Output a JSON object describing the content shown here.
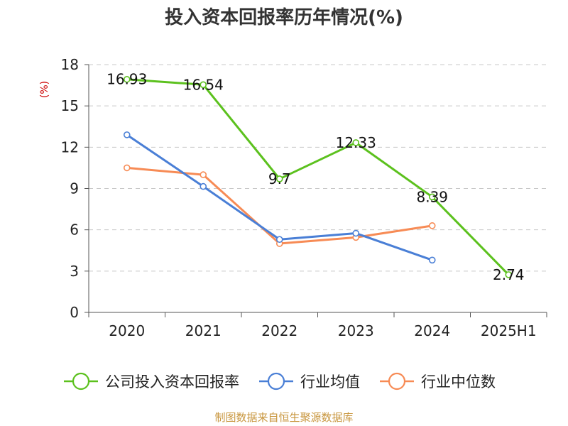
{
  "chart_data": {
    "type": "line",
    "title": "投入资本回报率历年情况(%)",
    "ylabel": "(%)",
    "categories": [
      "2020",
      "2021",
      "2022",
      "2023",
      "2024",
      "2025H1"
    ],
    "ylim": [
      0,
      18
    ],
    "yticks": [
      0,
      3,
      6,
      9,
      12,
      15,
      18
    ],
    "grid": true,
    "legend_position": "bottom",
    "series": [
      {
        "name": "公司投入资本回报率",
        "color": "#5cc11e",
        "values": [
          16.93,
          16.54,
          9.7,
          12.33,
          8.39,
          2.74
        ],
        "labels": [
          "16.93",
          "16.54",
          "9.7",
          "12.33",
          "8.39",
          "2.74"
        ]
      },
      {
        "name": "行业均值",
        "color": "#4a7fd6",
        "values": [
          12.9,
          9.15,
          5.3,
          5.75,
          3.8,
          null
        ]
      },
      {
        "name": "行业中位数",
        "color": "#f78b55",
        "values": [
          10.5,
          10.0,
          5.0,
          5.45,
          6.3,
          null
        ]
      }
    ],
    "source": "制图数据来自恒生聚源数据库"
  }
}
